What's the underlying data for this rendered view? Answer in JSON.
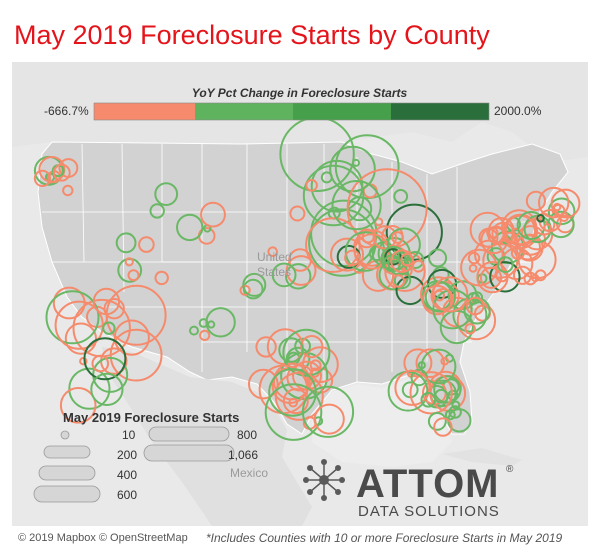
{
  "title": "May 2019 Foreclosure Starts by County",
  "color_legend": {
    "title": "YoY Pct Change in Foreclosure Starts",
    "min_label": "-666.7%",
    "max_label": "2000.0%",
    "bins": [
      "#f58b6c",
      "#5fb35e",
      "#469f4a",
      "#2a6f3b"
    ]
  },
  "size_legend": {
    "title": "May 2019 Foreclosure Starts",
    "items": [
      {
        "label": "10",
        "value": 10
      },
      {
        "label": "200",
        "value": 200
      },
      {
        "label": "400",
        "value": 400
      },
      {
        "label": "600",
        "value": 600
      },
      {
        "label": "800",
        "value": 800
      },
      {
        "label": "1,066",
        "value": 1066
      }
    ]
  },
  "map_labels": {
    "united": "United",
    "states": "States",
    "mexico": "Mexico"
  },
  "credit": "© 2019 Mapbox © OpenStreetMap",
  "note": "*Includes Counties with 10 or more Foreclosure Starts in May 2019",
  "logo": {
    "brand": "ATTOM",
    "registered": "®",
    "sub": "DATA SOLUTIONS"
  },
  "colors": {
    "negative": "#f58b6c",
    "positive": "#6ab866",
    "dark_positive": "#2a6f3b",
    "title": "#e4141b"
  }
}
